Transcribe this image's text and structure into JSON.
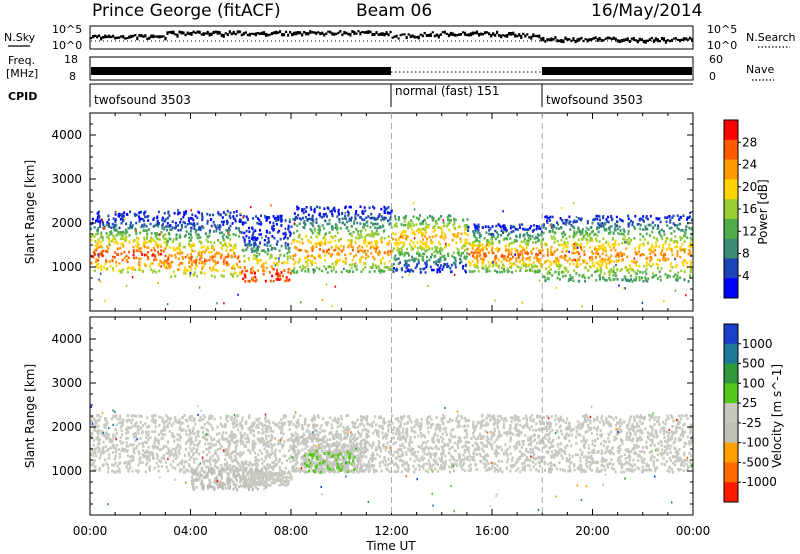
{
  "header": {
    "station": "Prince George (fitACF)",
    "beam": "Beam 06",
    "date": "16/May/2014"
  },
  "noise_panel": {
    "left_label": "N.Sky",
    "left_ticks": [
      "10^5",
      "10^0"
    ],
    "right_ticks": [
      "10^5",
      "10^0"
    ],
    "right_label": "N.Search"
  },
  "freq_panel": {
    "label_line1": "Freq.",
    "label_line2": "[MHz]",
    "left_ticks": [
      "18",
      "8"
    ],
    "right_ticks": [
      "60",
      "0"
    ],
    "right_label": "Nave"
  },
  "cpid_panel": {
    "label": "CPID",
    "segments": [
      {
        "name": "twofsound 3503",
        "start_hour": 0,
        "end_hour": 12
      },
      {
        "name": "normal (fast) 151",
        "start_hour": 12,
        "end_hour": 18
      },
      {
        "name": "twofsound 3503",
        "start_hour": 18,
        "end_hour": 24
      }
    ]
  },
  "x_axis": {
    "label": "Time UT",
    "ticks": [
      "00:00",
      "04:00",
      "08:00",
      "12:00",
      "16:00",
      "20:00",
      "00:00"
    ]
  },
  "power_panel": {
    "ylabel": "Slant Range [km]",
    "yticks": [
      "1000",
      "2000",
      "3000",
      "4000"
    ],
    "colorbar_label": "Power [dB]",
    "colorbar_ticks": [
      "4",
      "8",
      "12",
      "16",
      "20",
      "24",
      "28"
    ],
    "colors": [
      "#0000ff",
      "#1a44b8",
      "#3a8c74",
      "#4fae4a",
      "#9acd32",
      "#ffd400",
      "#ff9a00",
      "#ff5a00",
      "#ff0000"
    ]
  },
  "velocity_panel": {
    "ylabel": "Slant Range [km]",
    "yticks": [
      "1000",
      "2000",
      "3000",
      "4000"
    ],
    "colorbar_label": "Velocity [m s^-1]",
    "colorbar_ticks": [
      "1000",
      "500",
      "100",
      "25",
      "-25",
      "-100",
      "-500",
      "-1000"
    ],
    "colors": [
      "#1a3fc9",
      "#1f7a9a",
      "#2e9a3c",
      "#52c81a",
      "#c8c8c0",
      "#c0c0b8",
      "#ffa000",
      "#ff6a00",
      "#ff1a00"
    ]
  },
  "chart_data": {
    "type": "heatmap",
    "x_range_hours": [
      0,
      24
    ],
    "y_range_km": [
      0,
      4500
    ],
    "cpid_boundaries_hours": [
      12,
      18
    ],
    "power_db_range": [
      0,
      32
    ],
    "velocity_range_ms": [
      -1200,
      1200
    ],
    "power_scatter_bands": [
      {
        "hours": [
          0,
          3
        ],
        "range_km": [
          900,
          2300
        ],
        "peak_km": 1300,
        "peak_db": 28
      },
      {
        "hours": [
          3,
          6
        ],
        "range_km": [
          800,
          2300
        ],
        "peak_km": 1200,
        "peak_db": 26
      },
      {
        "hours": [
          6,
          8
        ],
        "range_km": [
          700,
          2200
        ],
        "peak_km": 800,
        "peak_db": 30
      },
      {
        "hours": [
          8,
          12
        ],
        "range_km": [
          900,
          2400
        ],
        "peak_km": 1400,
        "peak_db": 24
      },
      {
        "hours": [
          12,
          15
        ],
        "range_km": [
          900,
          2200
        ],
        "peak_km": 1700,
        "peak_db": 22
      },
      {
        "hours": [
          15,
          18
        ],
        "range_km": [
          900,
          2000
        ],
        "peak_km": 1300,
        "peak_db": 26
      },
      {
        "hours": [
          18,
          24
        ],
        "range_km": [
          700,
          2200
        ],
        "peak_km": 1300,
        "peak_db": 24
      }
    ],
    "velocity_scatter_bands": [
      {
        "hours": [
          0,
          12
        ],
        "range_km": [
          1000,
          2300
        ],
        "velocity_ms": 0
      },
      {
        "hours": [
          12,
          24
        ],
        "range_km": [
          1000,
          2300
        ],
        "velocity_ms": 0
      },
      {
        "hours": [
          4,
          7
        ],
        "range_km": [
          600,
          1100
        ],
        "velocity_ms": -300
      },
      {
        "hours": [
          6,
          8
        ],
        "range_km": [
          700,
          1000
        ],
        "velocity_ms": 100
      },
      {
        "hours": [
          8,
          11
        ],
        "range_km": [
          1000,
          1800
        ],
        "velocity_ms": -150
      },
      {
        "hours": [
          8.5,
          10.5
        ],
        "range_km": [
          1000,
          1500
        ],
        "velocity_ms": 150
      }
    ]
  }
}
